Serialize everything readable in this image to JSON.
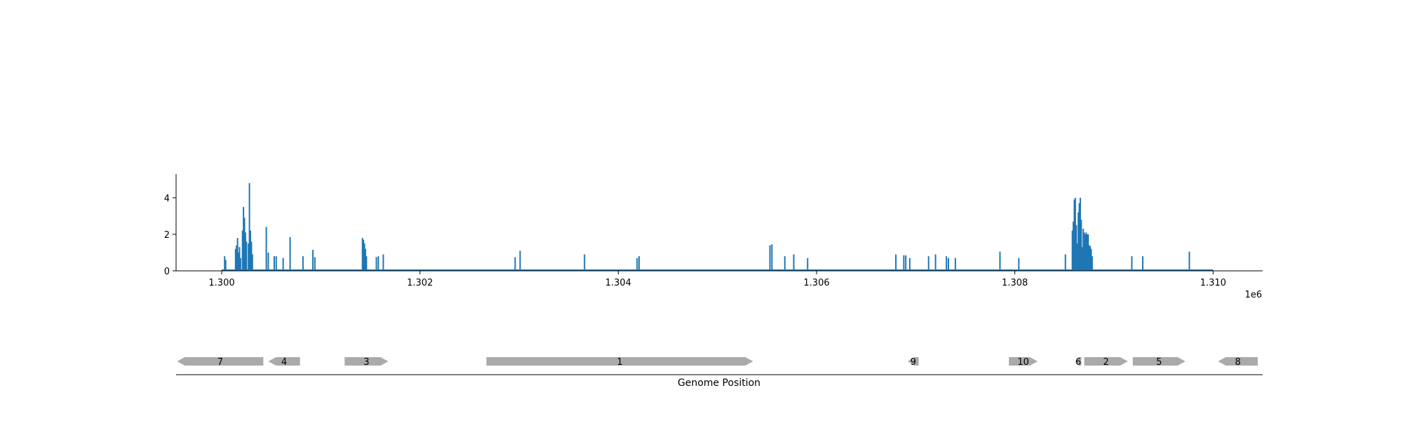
{
  "chart_data": {
    "type": "bar",
    "xlabel": "Genome Position",
    "ylabel": "",
    "title": "",
    "x_offset_label": "1e6",
    "xlim": [
      1299540,
      1310500
    ],
    "ylim": [
      0,
      5.3
    ],
    "x_ticks": [
      1300000,
      1302000,
      1304000,
      1306000,
      1308000,
      1310000
    ],
    "x_tick_labels": [
      "1.300",
      "1.302",
      "1.304",
      "1.306",
      "1.308",
      "1.310"
    ],
    "y_ticks": [
      0,
      2,
      4
    ],
    "y_tick_labels": [
      "0",
      "2",
      "4"
    ],
    "baseline_range": [
      1300000,
      1310000
    ],
    "colors": {
      "coverage": "#1f77b4",
      "gene": "#aaaaaa"
    },
    "x": [
      1300030,
      1300040,
      1300140,
      1300150,
      1300160,
      1300170,
      1300180,
      1300190,
      1300210,
      1300220,
      1300230,
      1300240,
      1300250,
      1300270,
      1300280,
      1300290,
      1300300,
      1300310,
      1300450,
      1300470,
      1300530,
      1300550,
      1300620,
      1300690,
      1300820,
      1300920,
      1300940,
      1301420,
      1301430,
      1301440,
      1301450,
      1301460,
      1301560,
      1301580,
      1301630,
      1302960,
      1303010,
      1303660,
      1304190,
      1304210,
      1305530,
      1305550,
      1305680,
      1305770,
      1305910,
      1306800,
      1306880,
      1306900,
      1306940,
      1307130,
      1307200,
      1307310,
      1307330,
      1307400,
      1307850,
      1308040,
      1308510,
      1308580,
      1308590,
      1308600,
      1308610,
      1308620,
      1308630,
      1308640,
      1308650,
      1308660,
      1308670,
      1308680,
      1308690,
      1308700,
      1308710,
      1308720,
      1308730,
      1308740,
      1308750,
      1308760,
      1308770,
      1308780,
      1309180,
      1309290,
      1309760
    ],
    "y": [
      0.8,
      0.6,
      1.2,
      1.4,
      1.8,
      1.0,
      1.3,
      0.7,
      2.2,
      3.5,
      2.9,
      2.1,
      1.6,
      1.5,
      4.8,
      2.2,
      1.6,
      0.9,
      2.4,
      1.0,
      0.8,
      0.8,
      0.7,
      1.85,
      0.8,
      1.15,
      0.75,
      1.8,
      1.7,
      1.5,
      1.2,
      0.8,
      0.75,
      0.8,
      0.9,
      0.75,
      1.1,
      0.9,
      0.7,
      0.8,
      1.4,
      1.45,
      0.8,
      0.9,
      0.7,
      0.9,
      0.85,
      0.85,
      0.7,
      0.8,
      0.9,
      0.8,
      0.7,
      0.7,
      1.05,
      0.7,
      0.9,
      2.2,
      2.7,
      3.9,
      4.0,
      2.5,
      1.5,
      3.2,
      3.7,
      4.0,
      2.8,
      1.3,
      2.3,
      2.1,
      2.0,
      2.1,
      2.0,
      2.0,
      1.4,
      1.35,
      1.2,
      0.8,
      0.8,
      0.8,
      1.05
    ],
    "genes": [
      {
        "label": "7",
        "start": 1299550,
        "end": 1300420,
        "strand": "-"
      },
      {
        "label": "4",
        "start": 1300470,
        "end": 1300790,
        "strand": "-"
      },
      {
        "label": "3",
        "start": 1301240,
        "end": 1301680,
        "strand": "+"
      },
      {
        "label": "1",
        "start": 1302670,
        "end": 1305360,
        "strand": "+"
      },
      {
        "label": "9",
        "start": 1306920,
        "end": 1307030,
        "strand": "-"
      },
      {
        "label": "10",
        "start": 1307940,
        "end": 1308230,
        "strand": "+"
      },
      {
        "label": "6",
        "start": 1308610,
        "end": 1308670,
        "strand": "-"
      },
      {
        "label": "2",
        "start": 1308700,
        "end": 1309140,
        "strand": "+"
      },
      {
        "label": "5",
        "start": 1309190,
        "end": 1309720,
        "strand": "+"
      },
      {
        "label": "8",
        "start": 1310050,
        "end": 1310450,
        "strand": "-"
      }
    ]
  }
}
